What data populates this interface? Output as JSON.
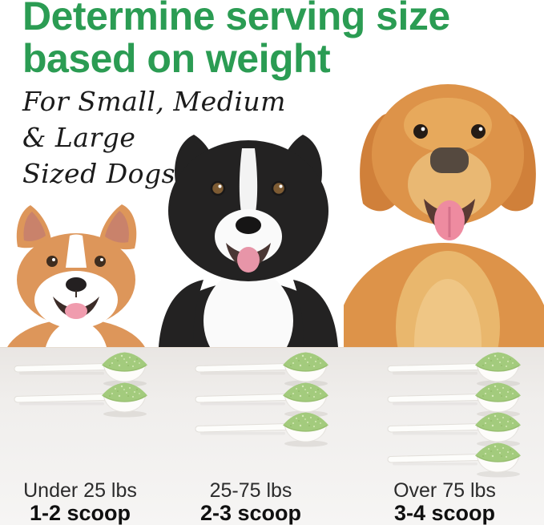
{
  "header": {
    "title_line1": "Determine serving size",
    "title_line2": "based on weight"
  },
  "subtitle": {
    "line1": "For Small, Medium",
    "line2": "& Large",
    "line3": "Sized Dogs"
  },
  "dogs": [
    {
      "name": "corgi",
      "size": "small"
    },
    {
      "name": "border-collie",
      "size": "medium"
    },
    {
      "name": "golden-retriever",
      "size": "large"
    }
  ],
  "serving": {
    "columns": [
      {
        "weight_range": "Under 25 lbs",
        "scoops_label": "1-2 scoop",
        "scoop_count": 2
      },
      {
        "weight_range": "25-75 lbs",
        "scoops_label": "2-3 scoop",
        "scoop_count": 3
      },
      {
        "weight_range": "Over 75 lbs",
        "scoops_label": "3-4 scoop",
        "scoop_count": 4
      }
    ]
  },
  "colors": {
    "title_green": "#2b9c53",
    "powder_green": "#a3cb7d",
    "panel_gray": "#efedec",
    "label_text": "#1b1b1b"
  }
}
